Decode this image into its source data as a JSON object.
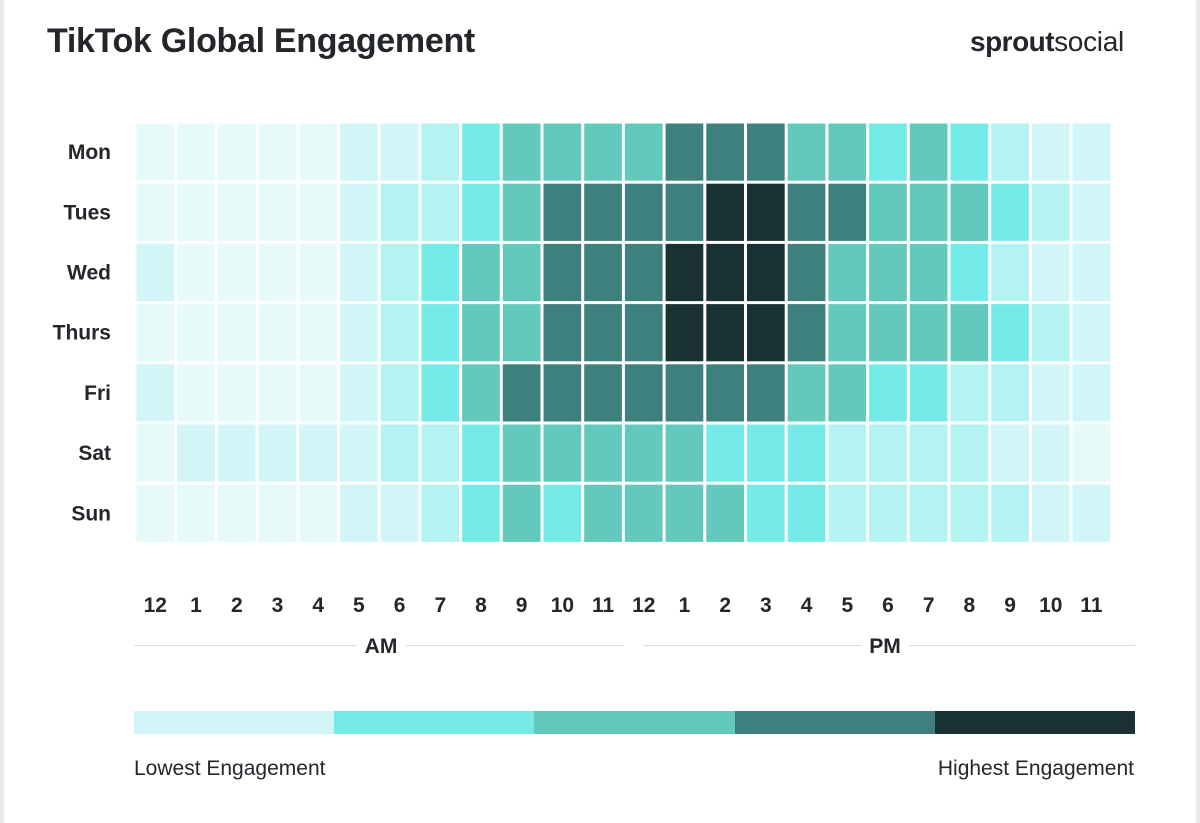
{
  "title": "TikTok Global Engagement",
  "brand": {
    "bold": "sprout",
    "light": "social"
  },
  "legend": {
    "low_label": "Lowest Engagement",
    "high_label": "Highest Engagement",
    "colors": [
      "#d2f6f7",
      "#74ebe8",
      "#62c9bc",
      "#3e807d",
      "#1a3133"
    ]
  },
  "chart_data": {
    "type": "heatmap",
    "title": "TikTok Global Engagement",
    "rows": [
      "Mon",
      "Tues",
      "Wed",
      "Thurs",
      "Fri",
      "Sat",
      "Sun"
    ],
    "columns": [
      "12",
      "1",
      "2",
      "3",
      "4",
      "5",
      "6",
      "7",
      "8",
      "9",
      "10",
      "11",
      "12",
      "1",
      "2",
      "3",
      "4",
      "5",
      "6",
      "7",
      "8",
      "9",
      "10",
      "11"
    ],
    "column_groups": [
      {
        "label": "AM",
        "start": 0,
        "end": 11
      },
      {
        "label": "PM",
        "start": 12,
        "end": 23
      }
    ],
    "scale": {
      "min": 0,
      "max": 4,
      "low_label": "Lowest Engagement",
      "high_label": "Highest Engagement"
    },
    "values": [
      [
        0.1,
        0.1,
        0.1,
        0.1,
        0.1,
        0.3,
        0.3,
        0.6,
        1,
        2,
        2,
        2,
        2,
        3,
        3,
        3,
        2,
        2,
        1,
        2,
        1,
        0.6,
        0.3,
        0.3
      ],
      [
        0.1,
        0.1,
        0.1,
        0.1,
        0.1,
        0.3,
        0.6,
        0.6,
        1,
        2,
        3,
        3,
        3,
        3,
        4,
        4,
        3,
        3,
        2,
        2,
        2,
        1,
        0.6,
        0.3
      ],
      [
        0.3,
        0.1,
        0.1,
        0.1,
        0.1,
        0.3,
        0.6,
        1,
        2,
        2,
        3,
        3,
        3,
        4,
        4,
        4,
        3,
        2,
        2,
        2,
        1,
        0.6,
        0.3,
        0.3
      ],
      [
        0.1,
        0.1,
        0.1,
        0.1,
        0.1,
        0.3,
        0.6,
        1,
        2,
        2,
        3,
        3,
        3,
        4,
        4,
        4,
        3,
        2,
        2,
        2,
        2,
        1,
        0.6,
        0.3
      ],
      [
        0.3,
        0.1,
        0.1,
        0.1,
        0.1,
        0.3,
        0.6,
        1,
        2,
        3,
        3,
        3,
        3,
        3,
        3,
        3,
        2,
        2,
        1,
        1,
        0.6,
        0.6,
        0.3,
        0.3
      ],
      [
        0.1,
        0.3,
        0.3,
        0.3,
        0.3,
        0.3,
        0.6,
        0.6,
        1,
        2,
        2,
        2,
        2,
        2,
        1,
        1,
        1,
        0.6,
        0.6,
        0.6,
        0.6,
        0.3,
        0.3,
        0.1
      ],
      [
        0.1,
        0.1,
        0.1,
        0.1,
        0.1,
        0.3,
        0.3,
        0.6,
        1,
        2,
        1,
        2,
        2,
        2,
        2,
        1,
        1,
        0.6,
        0.6,
        0.6,
        0.6,
        0.6,
        0.3,
        0.3
      ]
    ]
  }
}
